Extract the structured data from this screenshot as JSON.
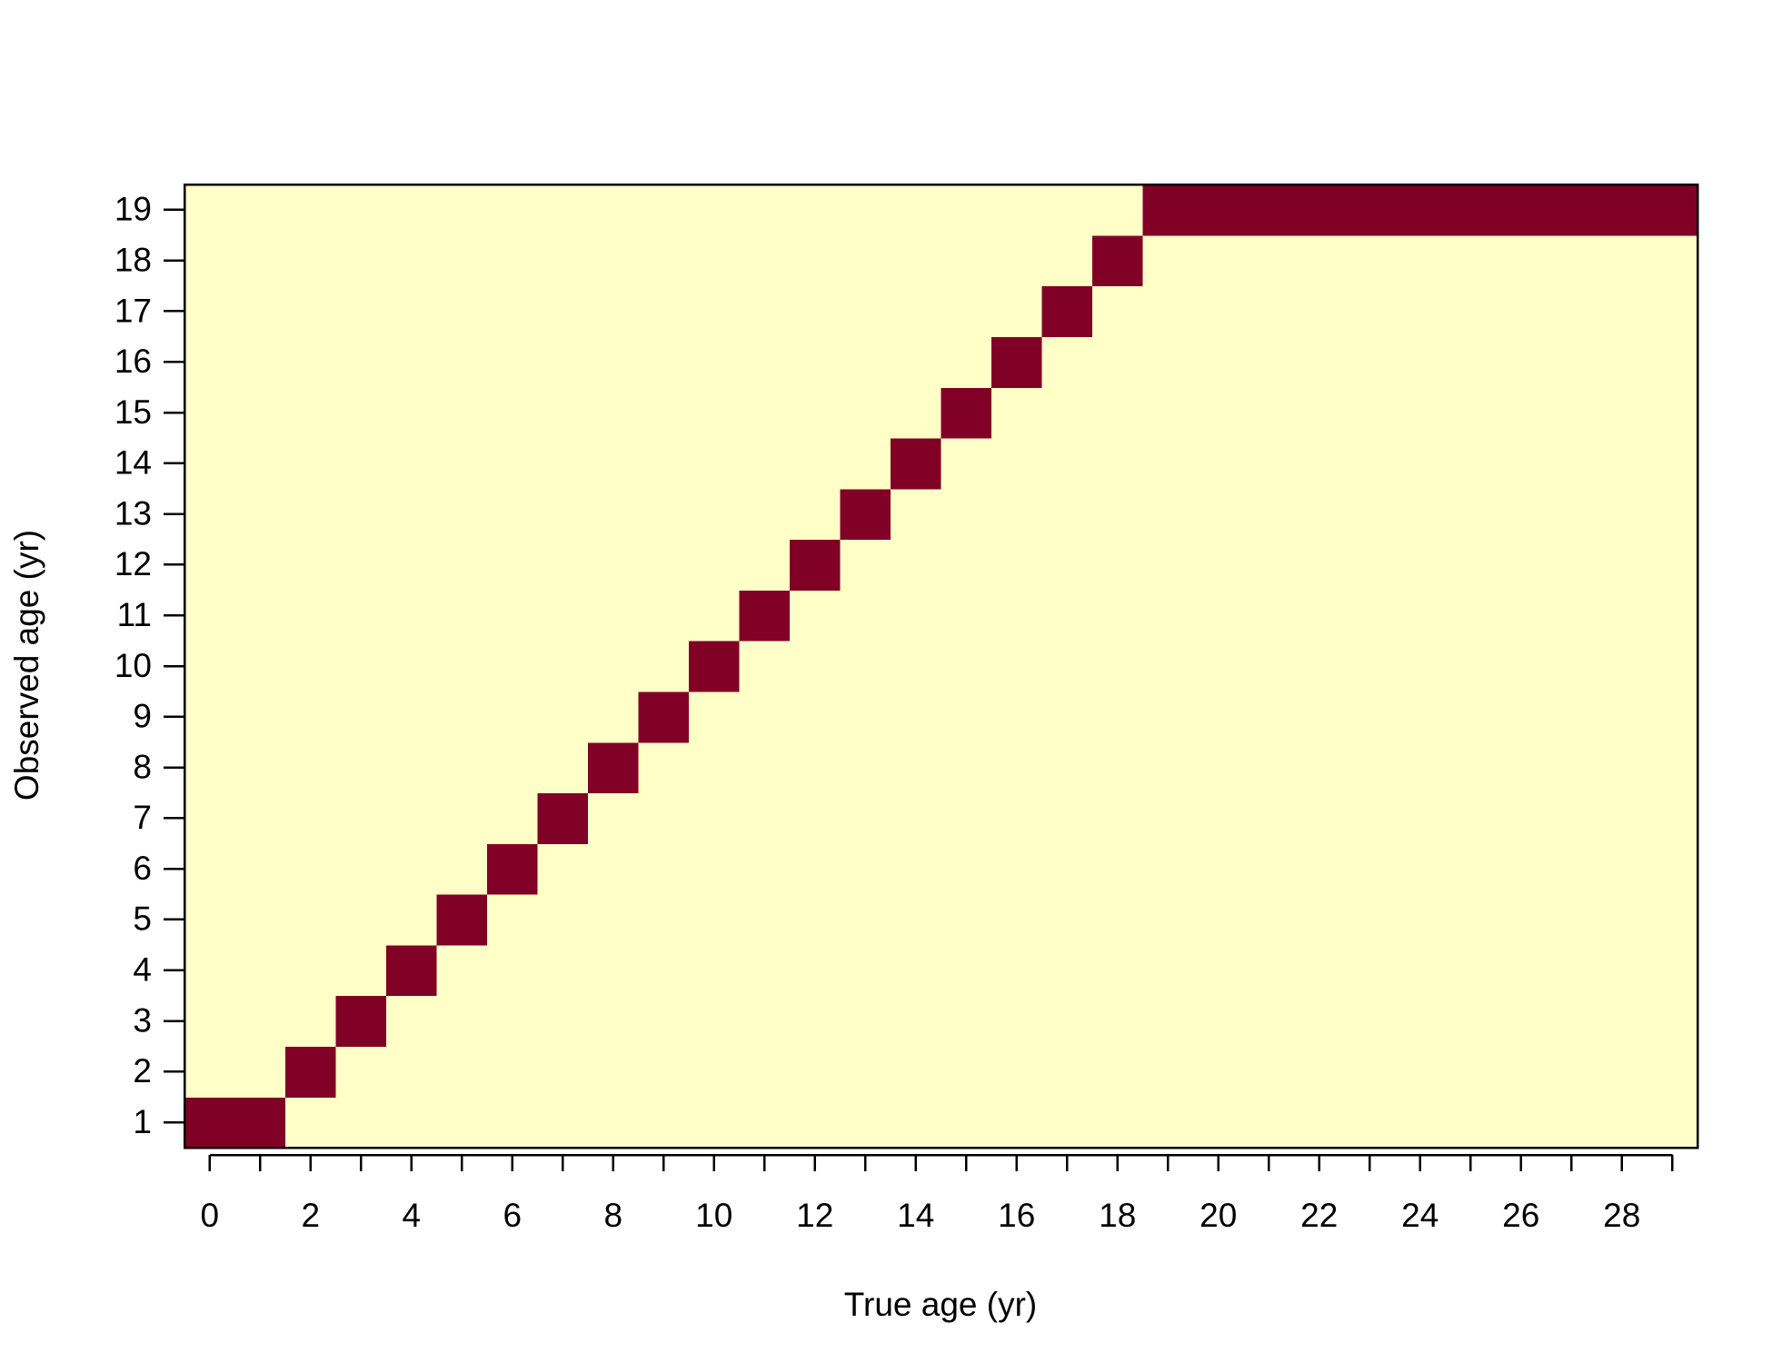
{
  "chart_data": {
    "type": "heatmap",
    "x_label": "True age (yr)",
    "y_label": "Observed age (yr)",
    "x": [
      0,
      1,
      2,
      3,
      4,
      5,
      6,
      7,
      8,
      9,
      10,
      11,
      12,
      13,
      14,
      15,
      16,
      17,
      18,
      19,
      20,
      21,
      22,
      23,
      24,
      25,
      26,
      27,
      28,
      29
    ],
    "y": [
      1,
      2,
      3,
      4,
      5,
      6,
      7,
      8,
      9,
      10,
      11,
      12,
      13,
      14,
      15,
      16,
      17,
      18,
      19
    ],
    "xlim": [
      -0.5,
      29.5
    ],
    "ylim": [
      0.5,
      19.5
    ],
    "xticks": [
      0,
      2,
      4,
      6,
      8,
      10,
      12,
      14,
      16,
      18,
      20,
      22,
      24,
      26,
      28
    ],
    "yticks": [
      1,
      2,
      3,
      4,
      5,
      6,
      7,
      8,
      9,
      10,
      11,
      12,
      13,
      14,
      15,
      16,
      17,
      18,
      19
    ],
    "colors": [
      "#FFFFC8",
      "#800026"
    ],
    "z": [
      [
        1,
        1,
        0,
        0,
        0,
        0,
        0,
        0,
        0,
        0,
        0,
        0,
        0,
        0,
        0,
        0,
        0,
        0,
        0,
        0,
        0,
        0,
        0,
        0,
        0,
        0,
        0,
        0,
        0,
        0
      ],
      [
        0,
        0,
        1,
        0,
        0,
        0,
        0,
        0,
        0,
        0,
        0,
        0,
        0,
        0,
        0,
        0,
        0,
        0,
        0,
        0,
        0,
        0,
        0,
        0,
        0,
        0,
        0,
        0,
        0,
        0
      ],
      [
        0,
        0,
        0,
        1,
        0,
        0,
        0,
        0,
        0,
        0,
        0,
        0,
        0,
        0,
        0,
        0,
        0,
        0,
        0,
        0,
        0,
        0,
        0,
        0,
        0,
        0,
        0,
        0,
        0,
        0
      ],
      [
        0,
        0,
        0,
        0,
        1,
        0,
        0,
        0,
        0,
        0,
        0,
        0,
        0,
        0,
        0,
        0,
        0,
        0,
        0,
        0,
        0,
        0,
        0,
        0,
        0,
        0,
        0,
        0,
        0,
        0
      ],
      [
        0,
        0,
        0,
        0,
        0,
        1,
        0,
        0,
        0,
        0,
        0,
        0,
        0,
        0,
        0,
        0,
        0,
        0,
        0,
        0,
        0,
        0,
        0,
        0,
        0,
        0,
        0,
        0,
        0,
        0
      ],
      [
        0,
        0,
        0,
        0,
        0,
        0,
        1,
        0,
        0,
        0,
        0,
        0,
        0,
        0,
        0,
        0,
        0,
        0,
        0,
        0,
        0,
        0,
        0,
        0,
        0,
        0,
        0,
        0,
        0,
        0
      ],
      [
        0,
        0,
        0,
        0,
        0,
        0,
        0,
        1,
        0,
        0,
        0,
        0,
        0,
        0,
        0,
        0,
        0,
        0,
        0,
        0,
        0,
        0,
        0,
        0,
        0,
        0,
        0,
        0,
        0,
        0
      ],
      [
        0,
        0,
        0,
        0,
        0,
        0,
        0,
        0,
        1,
        0,
        0,
        0,
        0,
        0,
        0,
        0,
        0,
        0,
        0,
        0,
        0,
        0,
        0,
        0,
        0,
        0,
        0,
        0,
        0,
        0
      ],
      [
        0,
        0,
        0,
        0,
        0,
        0,
        0,
        0,
        0,
        1,
        0,
        0,
        0,
        0,
        0,
        0,
        0,
        0,
        0,
        0,
        0,
        0,
        0,
        0,
        0,
        0,
        0,
        0,
        0,
        0
      ],
      [
        0,
        0,
        0,
        0,
        0,
        0,
        0,
        0,
        0,
        0,
        1,
        0,
        0,
        0,
        0,
        0,
        0,
        0,
        0,
        0,
        0,
        0,
        0,
        0,
        0,
        0,
        0,
        0,
        0,
        0
      ],
      [
        0,
        0,
        0,
        0,
        0,
        0,
        0,
        0,
        0,
        0,
        0,
        1,
        0,
        0,
        0,
        0,
        0,
        0,
        0,
        0,
        0,
        0,
        0,
        0,
        0,
        0,
        0,
        0,
        0,
        0
      ],
      [
        0,
        0,
        0,
        0,
        0,
        0,
        0,
        0,
        0,
        0,
        0,
        0,
        1,
        0,
        0,
        0,
        0,
        0,
        0,
        0,
        0,
        0,
        0,
        0,
        0,
        0,
        0,
        0,
        0,
        0
      ],
      [
        0,
        0,
        0,
        0,
        0,
        0,
        0,
        0,
        0,
        0,
        0,
        0,
        0,
        1,
        0,
        0,
        0,
        0,
        0,
        0,
        0,
        0,
        0,
        0,
        0,
        0,
        0,
        0,
        0,
        0
      ],
      [
        0,
        0,
        0,
        0,
        0,
        0,
        0,
        0,
        0,
        0,
        0,
        0,
        0,
        0,
        1,
        0,
        0,
        0,
        0,
        0,
        0,
        0,
        0,
        0,
        0,
        0,
        0,
        0,
        0,
        0
      ],
      [
        0,
        0,
        0,
        0,
        0,
        0,
        0,
        0,
        0,
        0,
        0,
        0,
        0,
        0,
        0,
        1,
        0,
        0,
        0,
        0,
        0,
        0,
        0,
        0,
        0,
        0,
        0,
        0,
        0,
        0
      ],
      [
        0,
        0,
        0,
        0,
        0,
        0,
        0,
        0,
        0,
        0,
        0,
        0,
        0,
        0,
        0,
        0,
        1,
        0,
        0,
        0,
        0,
        0,
        0,
        0,
        0,
        0,
        0,
        0,
        0,
        0
      ],
      [
        0,
        0,
        0,
        0,
        0,
        0,
        0,
        0,
        0,
        0,
        0,
        0,
        0,
        0,
        0,
        0,
        0,
        1,
        0,
        0,
        0,
        0,
        0,
        0,
        0,
        0,
        0,
        0,
        0,
        0
      ],
      [
        0,
        0,
        0,
        0,
        0,
        0,
        0,
        0,
        0,
        0,
        0,
        0,
        0,
        0,
        0,
        0,
        0,
        0,
        1,
        0,
        0,
        0,
        0,
        0,
        0,
        0,
        0,
        0,
        0,
        0
      ],
      [
        0,
        0,
        0,
        0,
        0,
        0,
        0,
        0,
        0,
        0,
        0,
        0,
        0,
        0,
        0,
        0,
        0,
        0,
        0,
        1,
        1,
        1,
        1,
        1,
        1,
        1,
        1,
        1,
        1,
        1
      ]
    ]
  }
}
